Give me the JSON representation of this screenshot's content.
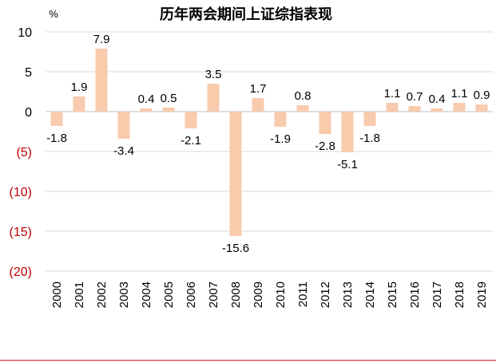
{
  "chart_data": {
    "type": "bar",
    "title": "历年两会期间上证综指表现",
    "unit": "%",
    "categories": [
      "2000",
      "2001",
      "2002",
      "2003",
      "2004",
      "2005",
      "2006",
      "2007",
      "2008",
      "2009",
      "2010",
      "2011",
      "2012",
      "2013",
      "2014",
      "2015",
      "2016",
      "2017",
      "2018",
      "2019"
    ],
    "values": [
      -1.8,
      1.9,
      7.9,
      -3.4,
      0.4,
      0.5,
      -2.1,
      3.5,
      -15.6,
      1.7,
      -1.9,
      0.8,
      -2.8,
      -5.1,
      -1.8,
      1.1,
      0.7,
      0.4,
      1.1,
      0.9
    ],
    "data_labels": [
      "-1.8",
      "1.9",
      "7.9",
      "-3.4",
      "0.4",
      "0.5",
      "-2.1",
      "3.5",
      "-15.6",
      "1.7",
      "-1.9",
      "0.8",
      "-2.8",
      "-5.1",
      "-1.8",
      "1.1",
      "0.7",
      "0.4",
      "1.1",
      "0.9"
    ],
    "yticks": [
      {
        "value": 10,
        "label": "10",
        "color": "#000000"
      },
      {
        "value": 5,
        "label": "5",
        "color": "#000000"
      },
      {
        "value": 0,
        "label": "0",
        "color": "#000000"
      },
      {
        "value": -5,
        "label": "(5)",
        "color": "#c00000"
      },
      {
        "value": -10,
        "label": "(10)",
        "color": "#c00000"
      },
      {
        "value": -15,
        "label": "(15)",
        "color": "#c00000"
      },
      {
        "value": -20,
        "label": "(20)",
        "color": "#c00000"
      }
    ],
    "ylim": [
      -20,
      10
    ],
    "grid": true,
    "bar_color": "#f8cbad",
    "negative_tick_color": "#c00000"
  }
}
